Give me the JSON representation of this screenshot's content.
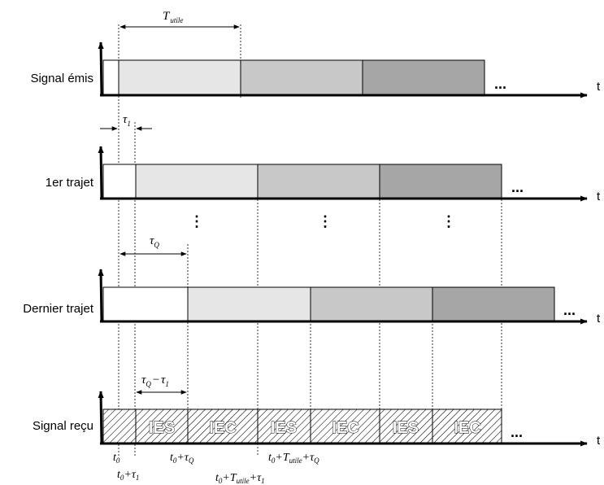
{
  "rows": [
    {
      "label": "Signal émis"
    },
    {
      "label": "1er trajet"
    },
    {
      "label": "Dernier trajet"
    },
    {
      "label": "Signal reçu"
    }
  ],
  "axis_label": "t",
  "ellipsis": "...",
  "vertical_dots": "⋮",
  "annotations": {
    "t_utile": {
      "base": "T",
      "sub": "utile"
    },
    "tau1": {
      "base": "τ",
      "sub": "1"
    },
    "tauQ": {
      "base": "τ",
      "sub": "Q"
    },
    "tauQ_minus_tau1": {
      "a": "τ",
      "a_sub": "Q",
      "op": "−",
      "b": "τ",
      "b_sub": "1"
    }
  },
  "received_segments": [
    "IES",
    "IEC",
    "IES",
    "IEC",
    "IES",
    "IEC"
  ],
  "time_labels": {
    "t0": {
      "base": "t",
      "sub": "0"
    },
    "t0_tau1": {
      "base": "t",
      "sub": "0",
      "rest": "+τ",
      "rest_sub": "1"
    },
    "t0_tauQ": {
      "base": "t",
      "sub": "0",
      "rest": "+τ",
      "rest_sub": "Q"
    },
    "t0_Tutile_tauQ": {
      "base": "t",
      "sub": "0",
      "mid": "+T",
      "mid_sub": "utile",
      "rest": "+τ",
      "rest_sub": "Q"
    },
    "t0_Tutile_tau1": {
      "base": "t",
      "sub": "0",
      "mid": "+T",
      "mid_sub": "utile",
      "rest": "+τ",
      "rest_sub": "1"
    }
  },
  "colors": {
    "block_light": "#e6e6e6",
    "block_mid": "#c8c8c8",
    "block_dark": "#a6a6a6",
    "axis": "#000000"
  }
}
